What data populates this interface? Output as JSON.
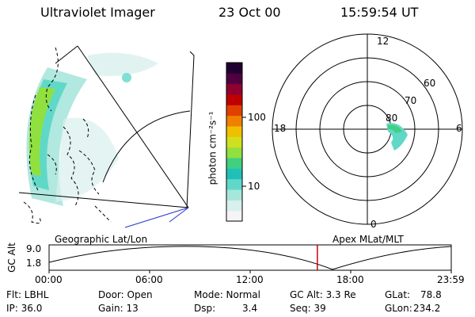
{
  "header": {
    "instrument": "Ultraviolet Imager",
    "date": "23 Oct 00",
    "time": "15:59:54 UT"
  },
  "colorbar": {
    "unit_label": "photon cm⁻²s⁻¹",
    "ticks": [
      "100",
      "10"
    ],
    "scale": "log",
    "colors": [
      "#f4f4f4",
      "#d8f0ee",
      "#a8e6dc",
      "#60d8c8",
      "#20c0b8",
      "#40d080",
      "#90e040",
      "#d0e020",
      "#f0c000",
      "#f08000",
      "#e04000",
      "#c00000",
      "#900030",
      "#500040",
      "#200030"
    ]
  },
  "polar_plot": {
    "hour_labels": [
      "12",
      "18",
      "6",
      "0"
    ],
    "lat_labels": [
      "60",
      "70",
      "80"
    ]
  },
  "timeline": {
    "left_label": "Geographic Lat/Lon",
    "right_label": "Apex MLat/MLT",
    "y_axis_title": "GC Alt",
    "y_ticks": [
      "9.0",
      "1.8"
    ],
    "x_ticks": [
      "00:00",
      "06:00",
      "12:00",
      "18:00",
      "23:59"
    ],
    "current_marker_time": "15:59:54",
    "marker_color": "#cc0000"
  },
  "info": {
    "filter": "Flt: LBHL",
    "ip": "IP: 36.0",
    "door": "Door: Open",
    "gain": "Gain: 13",
    "mode": "Mode: Normal",
    "dsp_label": "Dsp:",
    "dsp_value": "3.4",
    "gc_alt": "GC Alt: 3.3 Re",
    "seq": "Seq: 39",
    "glat_label": "GLat:",
    "glat_value": "78.8",
    "glon_label": "GLon:",
    "glon_value": "234.2"
  }
}
